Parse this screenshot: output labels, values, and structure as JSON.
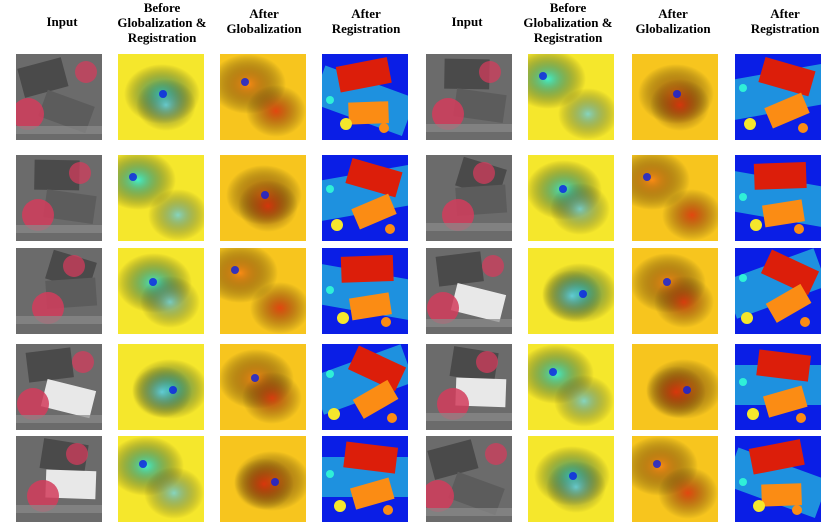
{
  "headers": [
    {
      "lines": [
        "Input"
      ]
    },
    {
      "lines": [
        "Before",
        "Globalization &",
        "Registration"
      ]
    },
    {
      "lines": [
        "After",
        "Globalization"
      ]
    },
    {
      "lines": [
        "After",
        "Registration"
      ]
    },
    {
      "lines": [
        "Input"
      ]
    },
    {
      "lines": [
        "Before",
        "Globalization &",
        "Registration"
      ]
    },
    {
      "lines": [
        "After",
        "Globalization"
      ]
    },
    {
      "lines": [
        "After",
        "Registration"
      ]
    }
  ],
  "grid": {
    "rows": 5,
    "cols": 8
  },
  "colors": {
    "jet_blue": "#0a1ee6",
    "jet_cyan": "#2ff0d8",
    "jet_yellow": "#f5e72c",
    "jet_orange": "#fb8c14",
    "jet_red": "#dc1e0a",
    "aerial_red": "#d23c5c",
    "aerial_gray": "#6b6b6b"
  }
}
